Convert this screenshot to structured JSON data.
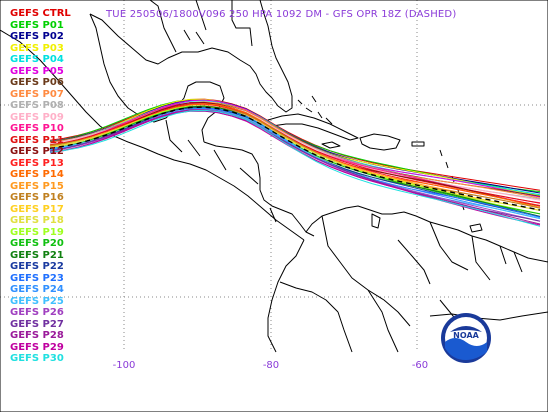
{
  "map": {
    "title": "TUE 250506/1800V096   250 HPA 1092 DM - GFS OPR 18Z (DASHED)",
    "title_color": "#8a3ad8",
    "longitude_labels": [
      "-100",
      "-80",
      "-60"
    ],
    "logo_text": "NOAA",
    "members": [
      {
        "name": "GEFS CTRL",
        "color": "#e00000"
      },
      {
        "name": "GEFS P01",
        "color": "#00d000"
      },
      {
        "name": "GEFS P02",
        "color": "#000090"
      },
      {
        "name": "GEFS P03",
        "color": "#f0f000"
      },
      {
        "name": "GEFS P04",
        "color": "#00e0e0"
      },
      {
        "name": "GEFS P05",
        "color": "#e000e0"
      },
      {
        "name": "GEFS P06",
        "color": "#6a3a1a"
      },
      {
        "name": "GEFS P07",
        "color": "#ff8a40"
      },
      {
        "name": "GEFS P08",
        "color": "#b0b0b0"
      },
      {
        "name": "GEFS P09",
        "color": "#ffb0c8"
      },
      {
        "name": "GEFS P10",
        "color": "#ff1493"
      },
      {
        "name": "GEFS P11",
        "color": "#e01010"
      },
      {
        "name": "GEFS P12",
        "color": "#8a1010"
      },
      {
        "name": "GEFS P13",
        "color": "#ff2020"
      },
      {
        "name": "GEFS P14",
        "color": "#ff6a00"
      },
      {
        "name": "GEFS P15",
        "color": "#ff9a20"
      },
      {
        "name": "GEFS P16",
        "color": "#c08020"
      },
      {
        "name": "GEFS P17",
        "color": "#ffd020"
      },
      {
        "name": "GEFS P18",
        "color": "#e0e040"
      },
      {
        "name": "GEFS P19",
        "color": "#a0ff20"
      },
      {
        "name": "GEFS P20",
        "color": "#10c010"
      },
      {
        "name": "GEFS P21",
        "color": "#108010"
      },
      {
        "name": "GEFS P22",
        "color": "#1a3aa0"
      },
      {
        "name": "GEFS P23",
        "color": "#2070ff"
      },
      {
        "name": "GEFS P24",
        "color": "#3090ff"
      },
      {
        "name": "GEFS P25",
        "color": "#40c0ff"
      },
      {
        "name": "GEFS P26",
        "color": "#a040c0"
      },
      {
        "name": "GEFS P27",
        "color": "#7030a0"
      },
      {
        "name": "GEFS P28",
        "color": "#9a1a9a"
      },
      {
        "name": "GEFS P29",
        "color": "#c000a0"
      },
      {
        "name": "GEFS P30",
        "color": "#20e0e0"
      }
    ]
  }
}
